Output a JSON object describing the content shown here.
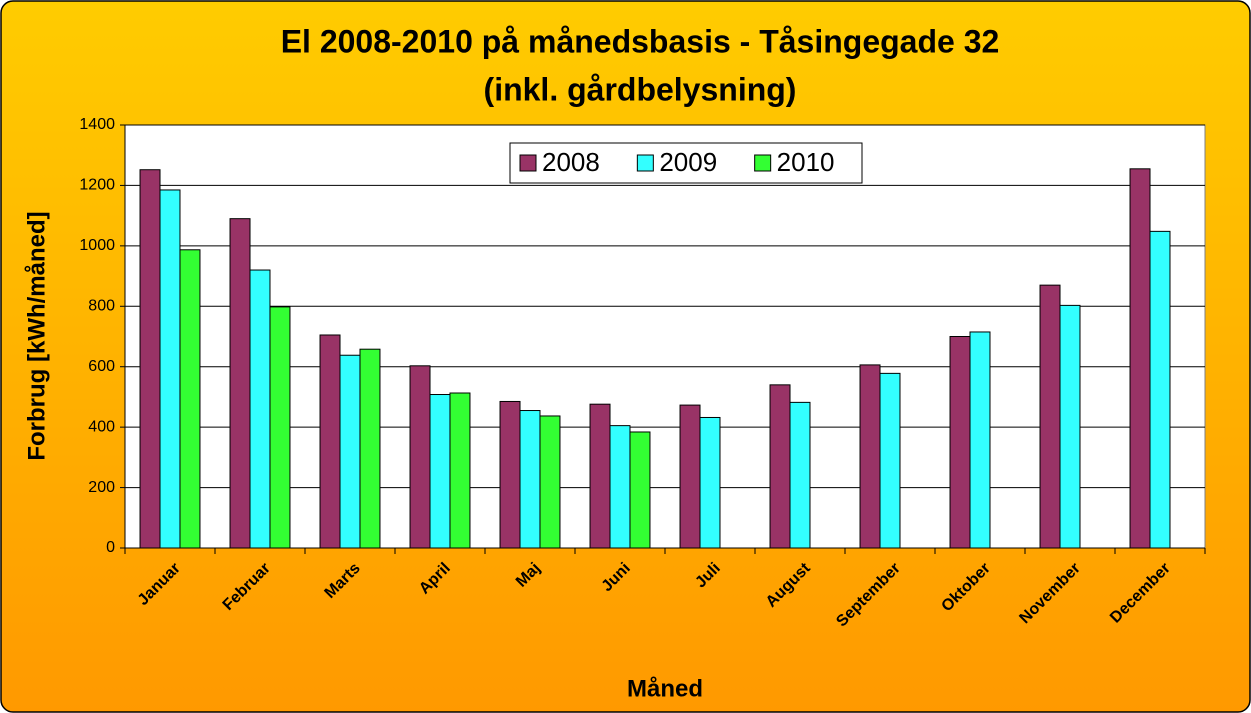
{
  "chart_data": {
    "type": "bar",
    "title": [
      "El 2008-2010 på månedsbasis - Tåsingegade 32",
      "(inkl. gårdbelysning)"
    ],
    "xlabel": "Måned",
    "ylabel": "Forbrug [kWh/måned]",
    "categories": [
      "Januar",
      "Februar",
      "Marts",
      "April",
      "Maj",
      "Juni",
      "Juli",
      "August",
      "September",
      "Oktober",
      "November",
      "December"
    ],
    "series": [
      {
        "name": "2008",
        "color": "#993366",
        "values": [
          1252,
          1090,
          705,
          603,
          485,
          476,
          473,
          540,
          606,
          700,
          870,
          1255
        ]
      },
      {
        "name": "2009",
        "color": "#33FFFF",
        "values": [
          1185,
          920,
          638,
          508,
          455,
          405,
          432,
          482,
          578,
          715,
          803,
          1048
        ]
      },
      {
        "name": "2010",
        "color": "#33FF33",
        "values": [
          987,
          798,
          658,
          513,
          437,
          384,
          null,
          null,
          null,
          null,
          null,
          null
        ]
      }
    ],
    "ylim": [
      0,
      1400
    ],
    "yticks": [
      0,
      200,
      400,
      600,
      800,
      1000,
      1200,
      1400
    ],
    "grid": true,
    "legend": "top"
  }
}
